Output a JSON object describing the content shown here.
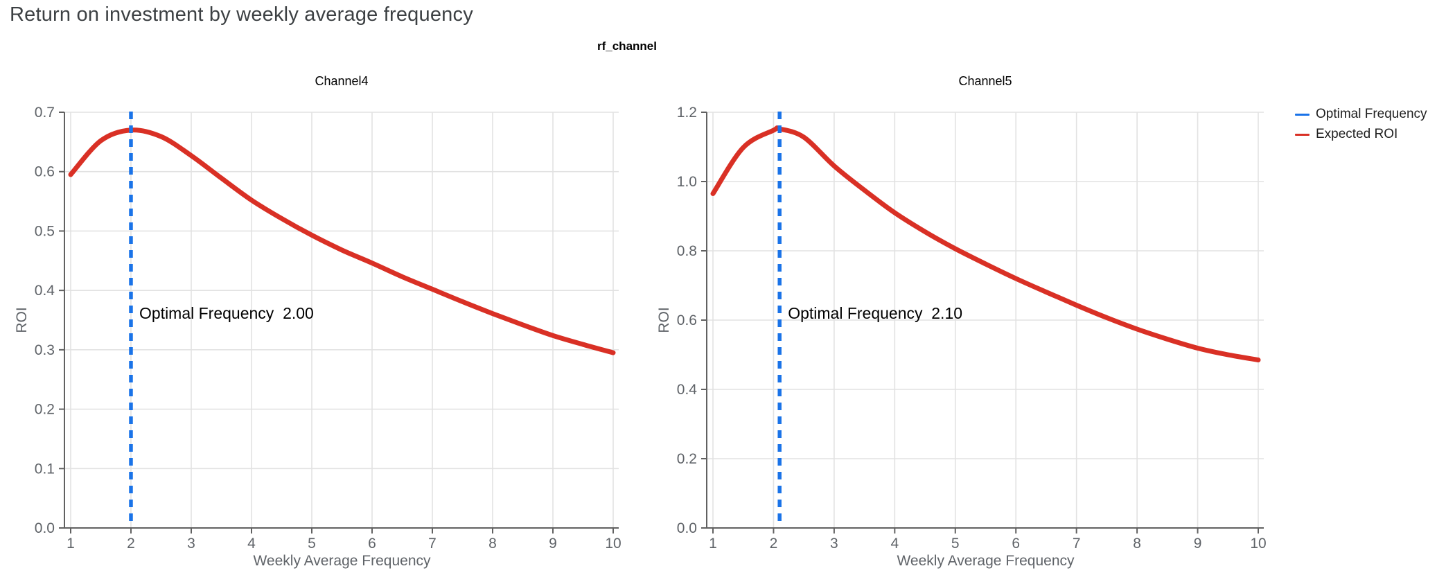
{
  "page": {
    "title": "Return on investment by weekly average frequency"
  },
  "figure": {
    "title": "rf_channel"
  },
  "legend": {
    "items": [
      {
        "label": "Optimal Frequency",
        "color": "#1a73e8"
      },
      {
        "label": "Expected ROI",
        "color": "#d93025"
      }
    ]
  },
  "colors": {
    "roi_line": "#d93025",
    "optimal_line": "#1a73e8",
    "grid": "#e2e2e2",
    "axis": "#616161",
    "tick_text": "#5f6368",
    "annotation_text": "#000000",
    "subplot_title_text": "#000000",
    "page_title_text": "#3c4043"
  },
  "chart_data": {
    "type": "line",
    "facet_by": "rf_channel",
    "xlabel": "Weekly Average Frequency",
    "ylabel": "ROI",
    "xlim": [
      1,
      10
    ],
    "grid": true,
    "legend_position": "right",
    "charts": [
      {
        "title": "Channel4",
        "ylim": [
          0,
          0.7
        ],
        "yticks": {
          "values": [
            0,
            0.1,
            0.2,
            0.3,
            0.4,
            0.5,
            0.6,
            0.7
          ],
          "labels": [
            "0.0",
            "0.1",
            "0.2",
            "0.3",
            "0.4",
            "0.5",
            "0.6",
            "0.7"
          ]
        },
        "xticks": {
          "values": [
            1,
            2,
            3,
            4,
            5,
            6,
            7,
            8,
            9,
            10
          ],
          "labels": [
            "1",
            "2",
            "3",
            "4",
            "5",
            "6",
            "7",
            "8",
            "9",
            "10"
          ]
        },
        "optimal_frequency": 2.0,
        "annotation": "Optimal Frequency  2.00",
        "series_name": "Expected ROI",
        "x": [
          1,
          1.5,
          2,
          2.5,
          3,
          3.5,
          4,
          4.5,
          5,
          5.5,
          6,
          6.5,
          7,
          7.5,
          8,
          8.5,
          9,
          9.5,
          10
        ],
        "roi": [
          0.595,
          0.652,
          0.67,
          0.659,
          0.627,
          0.589,
          0.552,
          0.521,
          0.493,
          0.468,
          0.446,
          0.423,
          0.402,
          0.381,
          0.361,
          0.342,
          0.324,
          0.309,
          0.295
        ]
      },
      {
        "title": "Channel5",
        "ylim": [
          0,
          1.2
        ],
        "yticks": {
          "values": [
            0,
            0.2,
            0.4,
            0.6,
            0.8,
            1.0,
            1.2
          ],
          "labels": [
            "0.0",
            "0.2",
            "0.4",
            "0.6",
            "0.8",
            "1.0",
            "1.2"
          ]
        },
        "xticks": {
          "values": [
            1,
            2,
            3,
            4,
            5,
            6,
            7,
            8,
            9,
            10
          ],
          "labels": [
            "1",
            "2",
            "3",
            "4",
            "5",
            "6",
            "7",
            "8",
            "9",
            "10"
          ]
        },
        "optimal_frequency": 2.1,
        "annotation": "Optimal Frequency  2.10",
        "series_name": "Expected ROI",
        "x": [
          1,
          1.5,
          2,
          2.1,
          2.5,
          3,
          3.5,
          4,
          4.5,
          5,
          5.5,
          6,
          6.5,
          7,
          7.5,
          8,
          8.5,
          9,
          9.5,
          10
        ],
        "roi": [
          0.965,
          1.098,
          1.148,
          1.152,
          1.128,
          1.045,
          0.975,
          0.91,
          0.855,
          0.806,
          0.762,
          0.72,
          0.681,
          0.643,
          0.607,
          0.574,
          0.545,
          0.519,
          0.5,
          0.485
        ]
      }
    ]
  }
}
